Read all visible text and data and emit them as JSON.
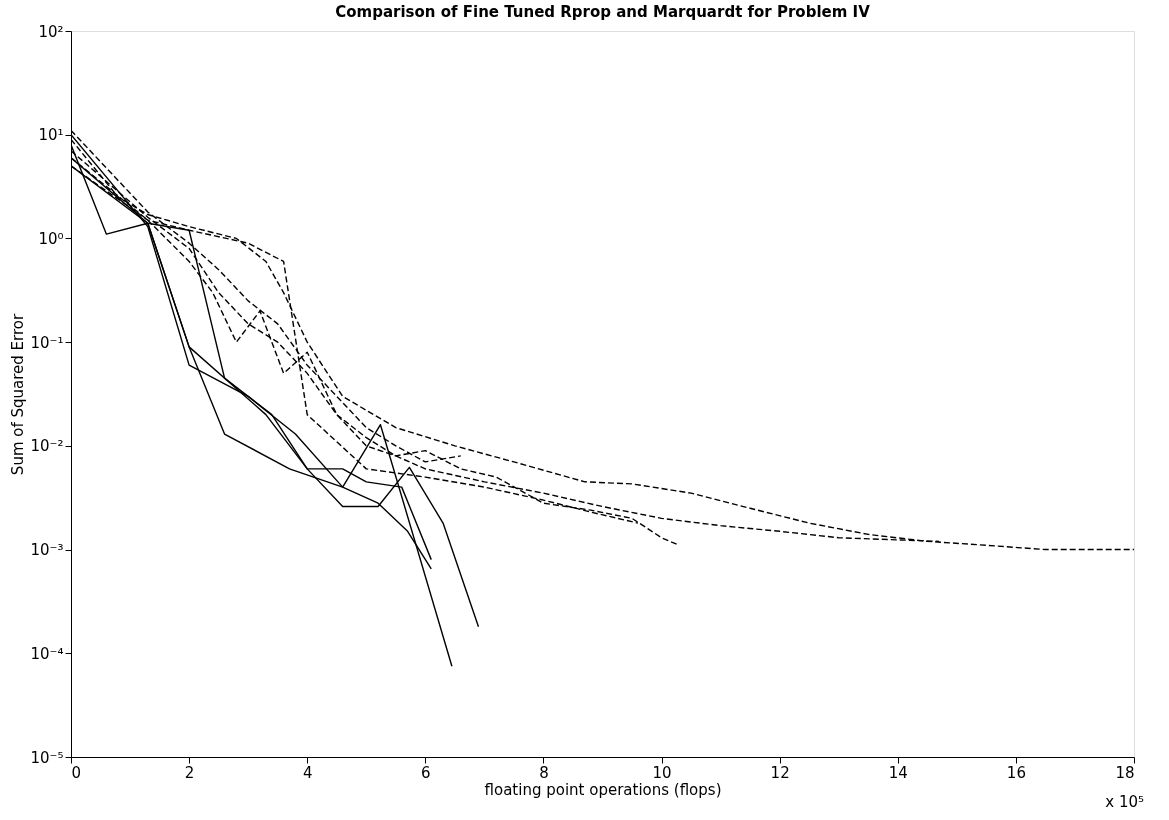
{
  "chart_data": {
    "type": "line",
    "title": "Comparison of Fine Tuned Rprop and Marquardt for Problem IV",
    "xlabel": "floating point operations (flops)",
    "ylabel": "Sum of Squared Error",
    "log": "y",
    "grid": false,
    "xlim": [
      0,
      18
    ],
    "xticks": [
      0,
      2,
      4,
      6,
      8,
      10,
      12,
      14,
      16,
      18
    ],
    "ylim": [
      1e-05,
      100
    ],
    "yticks": [
      {
        "value": 1e-05,
        "label": "10⁻⁵"
      },
      {
        "value": 0.0001,
        "label": "10⁻⁴"
      },
      {
        "value": 0.001,
        "label": "10⁻³"
      },
      {
        "value": 0.01,
        "label": "10⁻²"
      },
      {
        "value": 0.1,
        "label": "10⁻¹"
      },
      {
        "value": 1,
        "label": "10⁰"
      },
      {
        "value": 10,
        "label": "10¹"
      },
      {
        "value": 100,
        "label": "10²"
      }
    ],
    "annotations": [
      "x 10⁵"
    ],
    "series": [
      {
        "color": "#000000",
        "line_style": "solid",
        "x": [
          0,
          0.6,
          1.3,
          2.0,
          2.6,
          3.7,
          4.6,
          5.24,
          6.45
        ],
        "values": [
          8,
          1.1,
          1.4,
          0.09,
          0.013,
          0.006,
          0.004,
          0.016,
          7.5e-05
        ]
      },
      {
        "color": "#000000",
        "line_style": "solid",
        "x": [
          0,
          1.3,
          2.0,
          2.6,
          3.4,
          4.0,
          4.6,
          5.2,
          5.73,
          6.3,
          6.9
        ],
        "values": [
          6,
          1.4,
          1.2,
          0.045,
          0.02,
          0.006,
          0.0026,
          0.0026,
          0.0062,
          0.0018,
          0.00018
        ]
      },
      {
        "color": "#000000",
        "line_style": "solid",
        "x": [
          0,
          1.3,
          2.0,
          3.0,
          3.8,
          4.6,
          5.2,
          5.7,
          6.1
        ],
        "values": [
          10,
          1.3,
          0.06,
          0.03,
          0.013,
          0.004,
          0.0028,
          0.0015,
          0.00065
        ]
      },
      {
        "color": "#000000",
        "line_style": "solid",
        "x": [
          0,
          1.3,
          2.0,
          3.3,
          4.0,
          4.6,
          5.0,
          5.6,
          6.1
        ],
        "values": [
          5,
          1.4,
          0.09,
          0.02,
          0.006,
          0.006,
          0.0045,
          0.004,
          0.0008
        ]
      },
      {
        "color": "#000000",
        "line_style": "dashed",
        "x": [
          0,
          0.8,
          1.3,
          2.0,
          2.8,
          3.3,
          3.6,
          4.0,
          4.6,
          5.5,
          6.5,
          7.5,
          8.7,
          9.5,
          10.5,
          11.5,
          12.5,
          13.5,
          14.5,
          15.5,
          16.5,
          18
        ],
        "values": [
          9,
          2.5,
          1.7,
          1.3,
          1.0,
          0.6,
          0.3,
          0.1,
          0.03,
          0.015,
          0.01,
          0.007,
          0.0045,
          0.0043,
          0.0035,
          0.0025,
          0.0018,
          0.0014,
          0.0012,
          0.0011,
          0.001,
          0.001
        ]
      },
      {
        "color": "#000000",
        "line_style": "dashed",
        "x": [
          0,
          1.3,
          2.0,
          2.5,
          3.0,
          3.5,
          4.0,
          4.5,
          5.0,
          5.5,
          6.0,
          7.0,
          8.0,
          9.0,
          10.0,
          11.0,
          12.0,
          13.0,
          14.7
        ],
        "values": [
          7,
          1.6,
          0.8,
          0.3,
          0.15,
          0.1,
          0.05,
          0.02,
          0.012,
          0.008,
          0.006,
          0.0045,
          0.0035,
          0.0026,
          0.002,
          0.0017,
          0.0015,
          0.0013,
          0.0012
        ]
      },
      {
        "color": "#000000",
        "line_style": "dashed",
        "x": [
          0,
          1.3,
          2.0,
          2.4,
          2.8,
          3.2,
          3.6,
          4.0,
          4.5,
          5.0,
          5.5,
          6.0,
          6.6,
          7.2,
          8.0,
          8.8,
          9.5,
          10.0,
          10.3
        ],
        "values": [
          6,
          1.5,
          0.6,
          0.3,
          0.1,
          0.2,
          0.05,
          0.08,
          0.02,
          0.01,
          0.008,
          0.009,
          0.006,
          0.005,
          0.0028,
          0.0024,
          0.002,
          0.0013,
          0.0011
        ]
      },
      {
        "color": "#000000",
        "line_style": "dashed",
        "x": [
          0,
          1.3,
          2.0,
          2.5,
          3.0,
          3.5,
          4.0,
          4.5,
          5.0,
          5.5,
          6.0,
          6.6
        ],
        "values": [
          11,
          1.8,
          0.9,
          0.5,
          0.25,
          0.15,
          0.06,
          0.03,
          0.015,
          0.01,
          0.007,
          0.008
        ]
      },
      {
        "color": "#000000",
        "line_style": "dashed",
        "x": [
          0,
          1.3,
          2.0,
          3.0,
          3.6,
          4.0,
          5.0,
          6.0,
          7.0,
          8.0,
          8.8,
          9.6
        ],
        "values": [
          5,
          1.5,
          1.2,
          0.9,
          0.6,
          0.02,
          0.006,
          0.005,
          0.004,
          0.003,
          0.0023,
          0.0018
        ]
      }
    ]
  }
}
